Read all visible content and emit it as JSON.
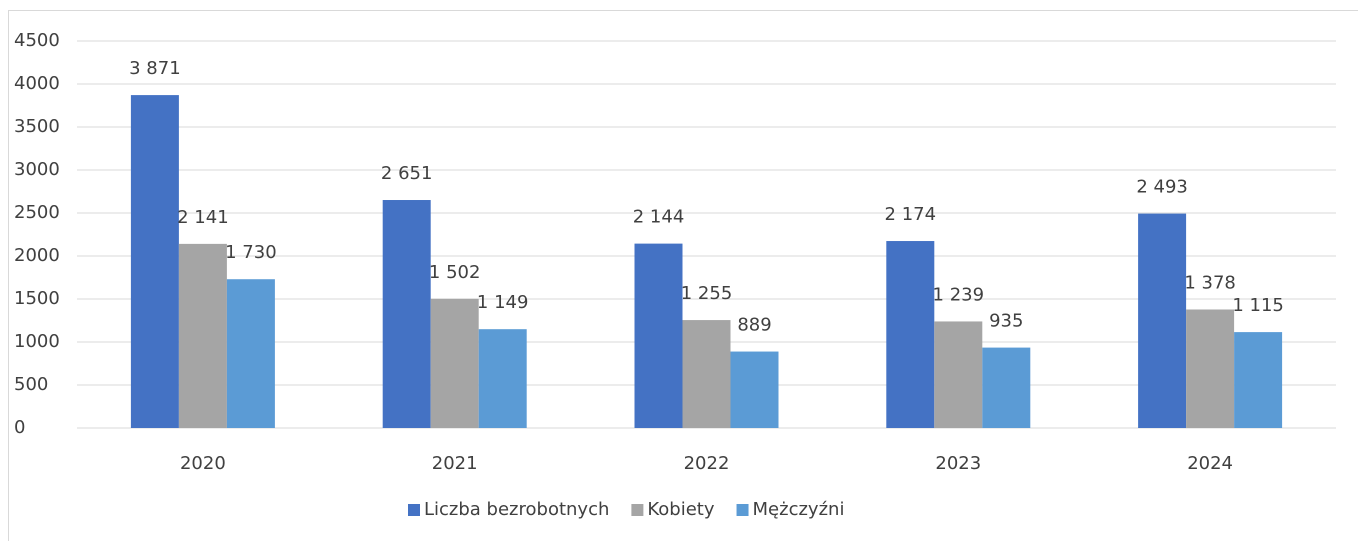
{
  "chart_data": {
    "type": "bar",
    "categories": [
      "2020",
      "2021",
      "2022",
      "2023",
      "2024"
    ],
    "series": [
      {
        "name": "Liczba bezrobotnych",
        "color": "#4472c4",
        "values": [
          3871,
          2651,
          2144,
          2174,
          2493
        ],
        "value_labels": [
          "3 871",
          "2 651",
          "2 144",
          "2 174",
          "2 493"
        ]
      },
      {
        "name": "Kobiety",
        "color": "#a5a5a5",
        "values": [
          2141,
          1502,
          1255,
          1239,
          1378
        ],
        "value_labels": [
          "2 141",
          "1 502",
          "1 255",
          "1 239",
          "1 378"
        ]
      },
      {
        "name": "Mężczyźni",
        "color": "#5b9bd5",
        "values": [
          1730,
          1149,
          889,
          935,
          1115
        ],
        "value_labels": [
          "1 730",
          "1 149",
          "889",
          "935",
          "1 115"
        ]
      }
    ],
    "ylim": [
      0,
      4500
    ],
    "yticks": [
      0,
      500,
      1000,
      1500,
      2000,
      2500,
      3000,
      3500,
      4000,
      4500
    ],
    "grid": true,
    "legend": "bottom"
  }
}
